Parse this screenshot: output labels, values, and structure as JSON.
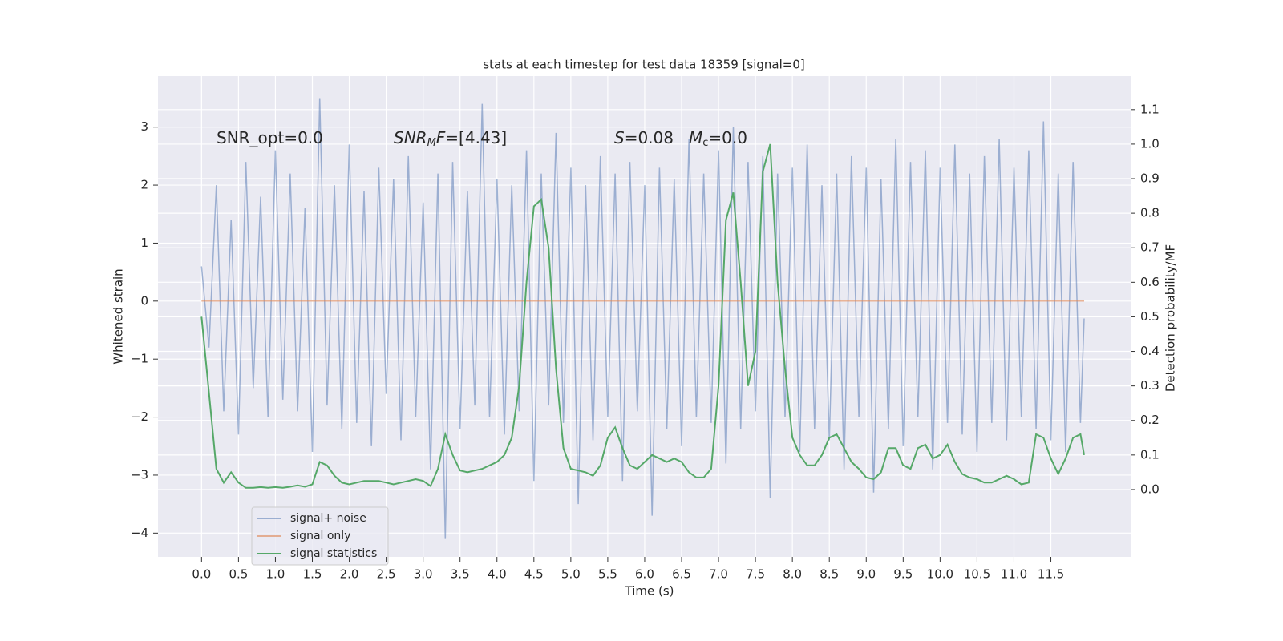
{
  "chart_data": {
    "type": "line",
    "title": "stats at each timestep for test data 18359 [signal=0]",
    "xlabel": "Time (s)",
    "ylabel": "Whitened strain",
    "y2label": "Detection probability/MF",
    "annotations": [
      "SNR_opt=0.0",
      "SNR",
      "M",
      "F",
      "=[4.43]",
      "S",
      "=0.08",
      "M",
      "c",
      "=0.0"
    ],
    "xlim": [
      -0.59,
      12.58
    ],
    "ylim": [
      -4.41,
      3.88
    ],
    "y2lim": [
      -0.195,
      1.197
    ],
    "xticks": [
      {
        "value": 0,
        "label": "0.0"
      },
      0.5,
      {
        "value": 1,
        "label": "1.0"
      },
      1.5,
      {
        "value": 2,
        "label": "2.0"
      },
      2.5,
      {
        "value": 3,
        "label": "3.0"
      },
      3.5,
      {
        "value": 4,
        "label": "4.0"
      },
      4.5,
      {
        "value": 5,
        "label": "5.0"
      },
      5.5,
      {
        "value": 6,
        "label": "6.0"
      },
      6.5,
      {
        "value": 7,
        "label": "7.0"
      },
      7.5,
      {
        "value": 8,
        "label": "8.0"
      },
      8.5,
      {
        "value": 9,
        "label": "9.0"
      },
      9.5,
      {
        "value": 10,
        "label": "10.0"
      },
      10.5,
      {
        "value": 11,
        "label": "11.0"
      },
      11.5
    ],
    "yticks": [
      {
        "value": -4,
        "label": "−4"
      },
      {
        "value": -3,
        "label": "−3"
      },
      {
        "value": -2,
        "label": "−2"
      },
      {
        "value": -1,
        "label": "−1"
      },
      0,
      1,
      2,
      3
    ],
    "y2ticks": [
      {
        "value": 0,
        "label": "0.0"
      },
      0.1,
      0.2,
      0.3,
      0.4,
      0.5,
      0.6,
      0.7,
      0.8,
      0.9,
      {
        "value": 1,
        "label": "1.0"
      },
      1.1
    ],
    "grid": true,
    "legend": "lower left",
    "x": [
      0,
      0.1,
      0.2,
      0.3,
      0.4,
      0.5,
      0.6,
      0.7,
      0.8,
      0.9,
      1,
      1.1,
      1.2,
      1.3,
      1.4,
      1.5,
      1.6,
      1.7,
      1.8,
      1.9,
      2,
      2.1,
      2.2,
      2.3,
      2.4,
      2.5,
      2.6,
      2.7,
      2.8,
      2.9,
      3,
      3.1,
      3.2,
      3.3,
      3.4,
      3.5,
      3.6,
      3.7,
      3.8,
      3.9,
      4,
      4.1,
      4.2,
      4.3,
      4.4,
      4.5,
      4.6,
      4.7,
      4.8,
      4.9,
      5,
      5.1,
      5.2,
      5.3,
      5.4,
      5.5,
      5.6,
      5.7,
      5.8,
      5.9,
      6,
      6.1,
      6.2,
      6.3,
      6.4,
      6.5,
      6.6,
      6.7,
      6.8,
      6.9,
      7,
      7.1,
      7.2,
      7.3,
      7.4,
      7.5,
      7.6,
      7.7,
      7.8,
      7.9,
      8,
      8.1,
      8.2,
      8.3,
      8.4,
      8.5,
      8.6,
      8.7,
      8.8,
      8.9,
      9,
      9.1,
      9.2,
      9.3,
      9.4,
      9.5,
      9.6,
      9.7,
      9.8,
      9.9,
      10,
      10.1,
      10.2,
      10.3,
      10.4,
      10.5,
      10.6,
      10.7,
      10.8,
      10.9,
      11,
      11.1,
      11.2,
      11.3,
      11.4,
      11.5,
      11.6,
      11.7,
      11.8,
      11.9,
      11.95
    ],
    "series": [
      {
        "name": "signal+ noise",
        "color": "#4c72b0",
        "opacity": 0.5,
        "axis": "y",
        "values": [
          0.6,
          -0.8,
          2.0,
          -1.9,
          1.4,
          -2.3,
          2.4,
          -1.5,
          1.8,
          -2.0,
          2.6,
          -1.7,
          2.2,
          -1.9,
          1.6,
          -2.6,
          3.5,
          -1.8,
          2.0,
          -2.2,
          2.7,
          -2.1,
          1.9,
          -2.5,
          2.3,
          -1.6,
          2.1,
          -2.4,
          2.5,
          -2.0,
          1.7,
          -2.9,
          2.2,
          -4.1,
          2.4,
          -2.2,
          1.9,
          -1.8,
          3.4,
          -2.0,
          2.1,
          -2.3,
          2.0,
          -1.9,
          2.6,
          -3.1,
          2.2,
          -1.8,
          2.9,
          -2.1,
          2.3,
          -3.5,
          2.0,
          -2.4,
          2.5,
          -2.0,
          2.2,
          -3.1,
          2.4,
          -1.9,
          2.0,
          -3.7,
          2.3,
          -2.2,
          2.1,
          -2.5,
          2.8,
          -2.0,
          2.2,
          -2.1,
          2.6,
          -2.8,
          3.0,
          -2.2,
          2.4,
          -1.9,
          2.5,
          -3.4,
          2.2,
          -2.0,
          2.3,
          -2.6,
          2.7,
          -2.2,
          2.0,
          -2.4,
          2.2,
          -2.9,
          2.5,
          -2.0,
          2.3,
          -3.3,
          2.1,
          -2.2,
          2.8,
          -2.5,
          2.4,
          -2.0,
          2.6,
          -2.9,
          2.3,
          -2.1,
          2.7,
          -2.3,
          2.2,
          -2.6,
          2.5,
          -2.1,
          2.8,
          -2.4,
          2.3,
          -2.0,
          2.6,
          -2.2,
          3.1,
          -2.4,
          2.2,
          -2.6,
          2.4,
          -2.1,
          -0.3
        ]
      },
      {
        "name": "signal only",
        "color": "#dd8452",
        "opacity": 0.6,
        "axis": "y",
        "values": [
          0,
          0,
          0,
          0,
          0,
          0,
          0,
          0,
          0,
          0,
          0,
          0,
          0,
          0,
          0,
          0,
          0,
          0,
          0,
          0,
          0,
          0,
          0,
          0,
          0,
          0,
          0,
          0,
          0,
          0,
          0,
          0,
          0,
          0,
          0,
          0,
          0,
          0,
          0,
          0,
          0,
          0,
          0,
          0,
          0,
          0,
          0,
          0,
          0,
          0,
          0,
          0,
          0,
          0,
          0,
          0,
          0,
          0,
          0,
          0,
          0,
          0,
          0,
          0,
          0,
          0,
          0,
          0,
          0,
          0,
          0,
          0,
          0,
          0,
          0,
          0,
          0,
          0,
          0,
          0,
          0,
          0,
          0,
          0,
          0,
          0,
          0,
          0,
          0,
          0,
          0,
          0,
          0,
          0,
          0,
          0,
          0,
          0,
          0,
          0,
          0,
          0,
          0,
          0,
          0,
          0,
          0,
          0,
          0,
          0,
          0,
          0,
          0,
          0,
          0,
          0,
          0,
          0,
          0,
          0,
          0
        ]
      },
      {
        "name": "signal statistics",
        "color": "#55a868",
        "opacity": 1,
        "axis": "y2",
        "values": [
          0.5,
          0.28,
          0.06,
          0.02,
          0.05,
          0.02,
          0.005,
          0.005,
          0.007,
          0.005,
          0.007,
          0.005,
          0.008,
          0.012,
          0.008,
          0.015,
          0.08,
          0.07,
          0.04,
          0.02,
          0.015,
          0.02,
          0.025,
          0.025,
          0.025,
          0.02,
          0.015,
          0.02,
          0.025,
          0.03,
          0.025,
          0.01,
          0.06,
          0.16,
          0.1,
          0.055,
          0.05,
          0.055,
          0.06,
          0.07,
          0.08,
          0.1,
          0.15,
          0.3,
          0.6,
          0.82,
          0.84,
          0.7,
          0.35,
          0.12,
          0.06,
          0.055,
          0.05,
          0.04,
          0.07,
          0.15,
          0.18,
          0.12,
          0.07,
          0.06,
          0.08,
          0.1,
          0.09,
          0.08,
          0.09,
          0.08,
          0.05,
          0.035,
          0.035,
          0.06,
          0.3,
          0.78,
          0.86,
          0.6,
          0.3,
          0.4,
          0.92,
          1.0,
          0.6,
          0.35,
          0.15,
          0.1,
          0.07,
          0.07,
          0.1,
          0.15,
          0.16,
          0.12,
          0.08,
          0.06,
          0.035,
          0.03,
          0.05,
          0.12,
          0.12,
          0.07,
          0.06,
          0.12,
          0.13,
          0.09,
          0.1,
          0.13,
          0.08,
          0.045,
          0.035,
          0.03,
          0.02,
          0.02,
          0.03,
          0.04,
          0.03,
          0.015,
          0.02,
          0.16,
          0.15,
          0.09,
          0.045,
          0.09,
          0.15,
          0.16,
          0.1
        ]
      }
    ]
  }
}
